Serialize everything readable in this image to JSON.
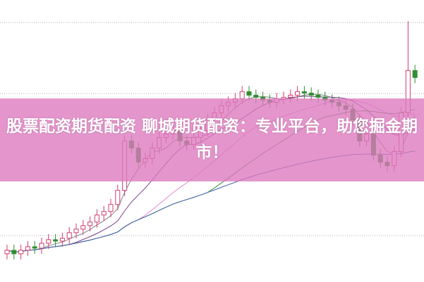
{
  "title": "股票配资期货配资 聊城期货配资：专业平台，助您掘金期市！",
  "colors": {
    "up": "#d23c6e",
    "down": "#2f8f2f",
    "banner": "#dc78be",
    "grid": "#b0b0b0",
    "ma": [
      "#808080",
      "#7b3f8f",
      "#e58ad0",
      "#3a8f3a",
      "#4060b0"
    ]
  },
  "chart_data": {
    "type": "candlestick",
    "ylim": [
      0,
      400
    ],
    "grid": "dotted horizontal",
    "moving_averages": [
      5,
      10,
      20,
      30,
      60
    ],
    "open": [
      40,
      45,
      40,
      45,
      50,
      48,
      55,
      60,
      58,
      62,
      70,
      75,
      80,
      85,
      95,
      100,
      110,
      130,
      200,
      190,
      170,
      175,
      190,
      205,
      210,
      215,
      200,
      195,
      205,
      215,
      230,
      240,
      250,
      255,
      260,
      270,
      265,
      262,
      258,
      255,
      260,
      262,
      265,
      270,
      268,
      265,
      262,
      258,
      255,
      250,
      245,
      230,
      200,
      210,
      180,
      170,
      165,
      185,
      240,
      300
    ],
    "high": [
      53,
      53,
      53,
      58,
      58,
      63,
      68,
      68,
      70,
      78,
      83,
      88,
      93,
      103,
      108,
      118,
      138,
      208,
      208,
      198,
      183,
      198,
      213,
      218,
      223,
      223,
      208,
      213,
      223,
      238,
      248,
      258,
      263,
      268,
      278,
      278,
      273,
      270,
      266,
      268,
      270,
      273,
      278,
      278,
      276,
      273,
      270,
      266,
      263,
      258,
      253,
      238,
      218,
      218,
      188,
      178,
      193,
      248,
      370,
      308
    ],
    "low": [
      32,
      32,
      32,
      37,
      40,
      40,
      47,
      50,
      50,
      54,
      62,
      67,
      72,
      77,
      87,
      92,
      102,
      122,
      182,
      162,
      162,
      167,
      182,
      197,
      202,
      192,
      187,
      187,
      197,
      207,
      222,
      232,
      242,
      247,
      252,
      257,
      254,
      250,
      247,
      247,
      252,
      254,
      257,
      260,
      257,
      254,
      250,
      247,
      242,
      237,
      222,
      192,
      192,
      172,
      162,
      157,
      157,
      177,
      232,
      282
    ],
    "close": [
      45,
      40,
      45,
      50,
      48,
      55,
      60,
      58,
      62,
      70,
      75,
      80,
      85,
      95,
      100,
      110,
      130,
      200,
      190,
      170,
      175,
      190,
      205,
      210,
      215,
      200,
      195,
      205,
      215,
      230,
      240,
      250,
      255,
      260,
      270,
      265,
      262,
      258,
      255,
      260,
      262,
      265,
      270,
      268,
      265,
      262,
      258,
      255,
      250,
      245,
      230,
      200,
      210,
      180,
      170,
      165,
      185,
      240,
      300,
      290
    ]
  }
}
